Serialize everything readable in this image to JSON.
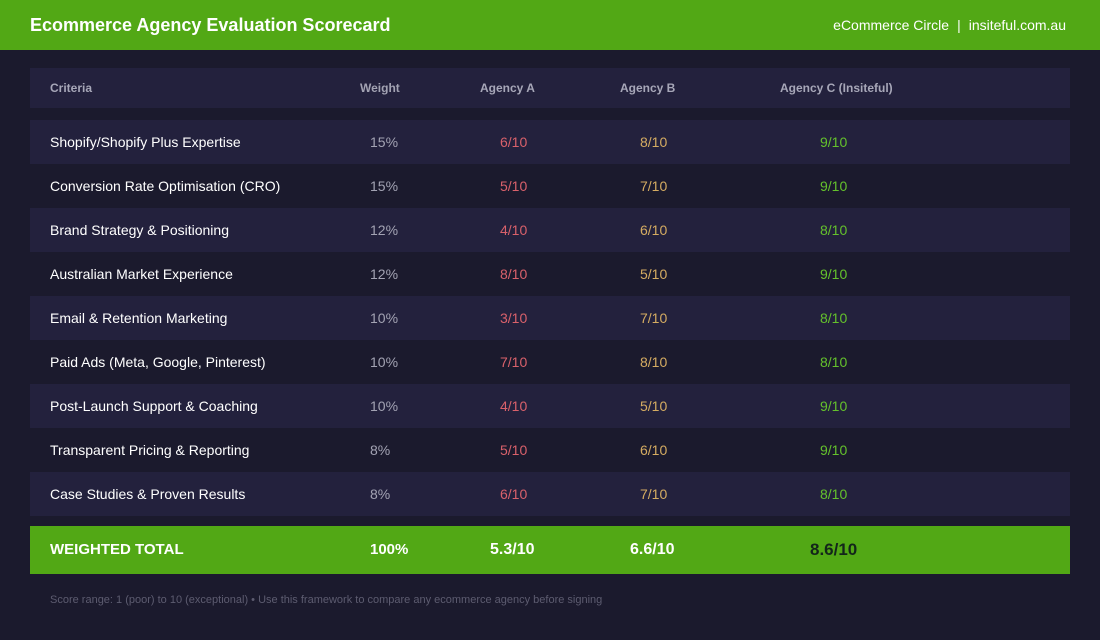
{
  "header": {
    "title": "Ecommerce Agency Evaluation Scorecard",
    "brand": "eCommerce Circle",
    "separator": "|",
    "site": "insiteful.com.au"
  },
  "table": {
    "columns": {
      "criteria": "Criteria",
      "weight": "Weight",
      "agency_a": "Agency A",
      "agency_b": "Agency B",
      "agency_c": "Agency C (Insiteful)"
    },
    "rows": [
      {
        "criteria": "Shopify/Shopify Plus Expertise",
        "weight": "15%",
        "a": "6/10",
        "b": "8/10",
        "c": "9/10"
      },
      {
        "criteria": "Conversion Rate Optimisation (CRO)",
        "weight": "15%",
        "a": "5/10",
        "b": "7/10",
        "c": "9/10"
      },
      {
        "criteria": "Brand Strategy & Positioning",
        "weight": "12%",
        "a": "4/10",
        "b": "6/10",
        "c": "8/10"
      },
      {
        "criteria": "Australian Market Experience",
        "weight": "12%",
        "a": "8/10",
        "b": "5/10",
        "c": "9/10"
      },
      {
        "criteria": "Email & Retention Marketing",
        "weight": "10%",
        "a": "3/10",
        "b": "7/10",
        "c": "8/10"
      },
      {
        "criteria": "Paid Ads (Meta, Google, Pinterest)",
        "weight": "10%",
        "a": "7/10",
        "b": "8/10",
        "c": "8/10"
      },
      {
        "criteria": "Post-Launch Support & Coaching",
        "weight": "10%",
        "a": "4/10",
        "b": "5/10",
        "c": "9/10"
      },
      {
        "criteria": "Transparent Pricing & Reporting",
        "weight": "8%",
        "a": "5/10",
        "b": "6/10",
        "c": "9/10"
      },
      {
        "criteria": "Case Studies & Proven Results",
        "weight": "8%",
        "a": "6/10",
        "b": "7/10",
        "c": "8/10"
      }
    ],
    "total": {
      "label": "WEIGHTED TOTAL",
      "weight": "100%",
      "a": "5.3/10",
      "b": "6.6/10",
      "c": "8.6/10"
    }
  },
  "footer": {
    "note": "Score range: 1 (poor) to 10 (exceptional)  •  Use this framework to compare any ecommerce agency before signing"
  },
  "colors": {
    "accent_green": "#52a815",
    "background": "#1b1a2d",
    "row_shade": "#23213d",
    "agency_a": "#d9616b",
    "agency_b": "#d5ac62",
    "agency_c": "#64c12c"
  }
}
